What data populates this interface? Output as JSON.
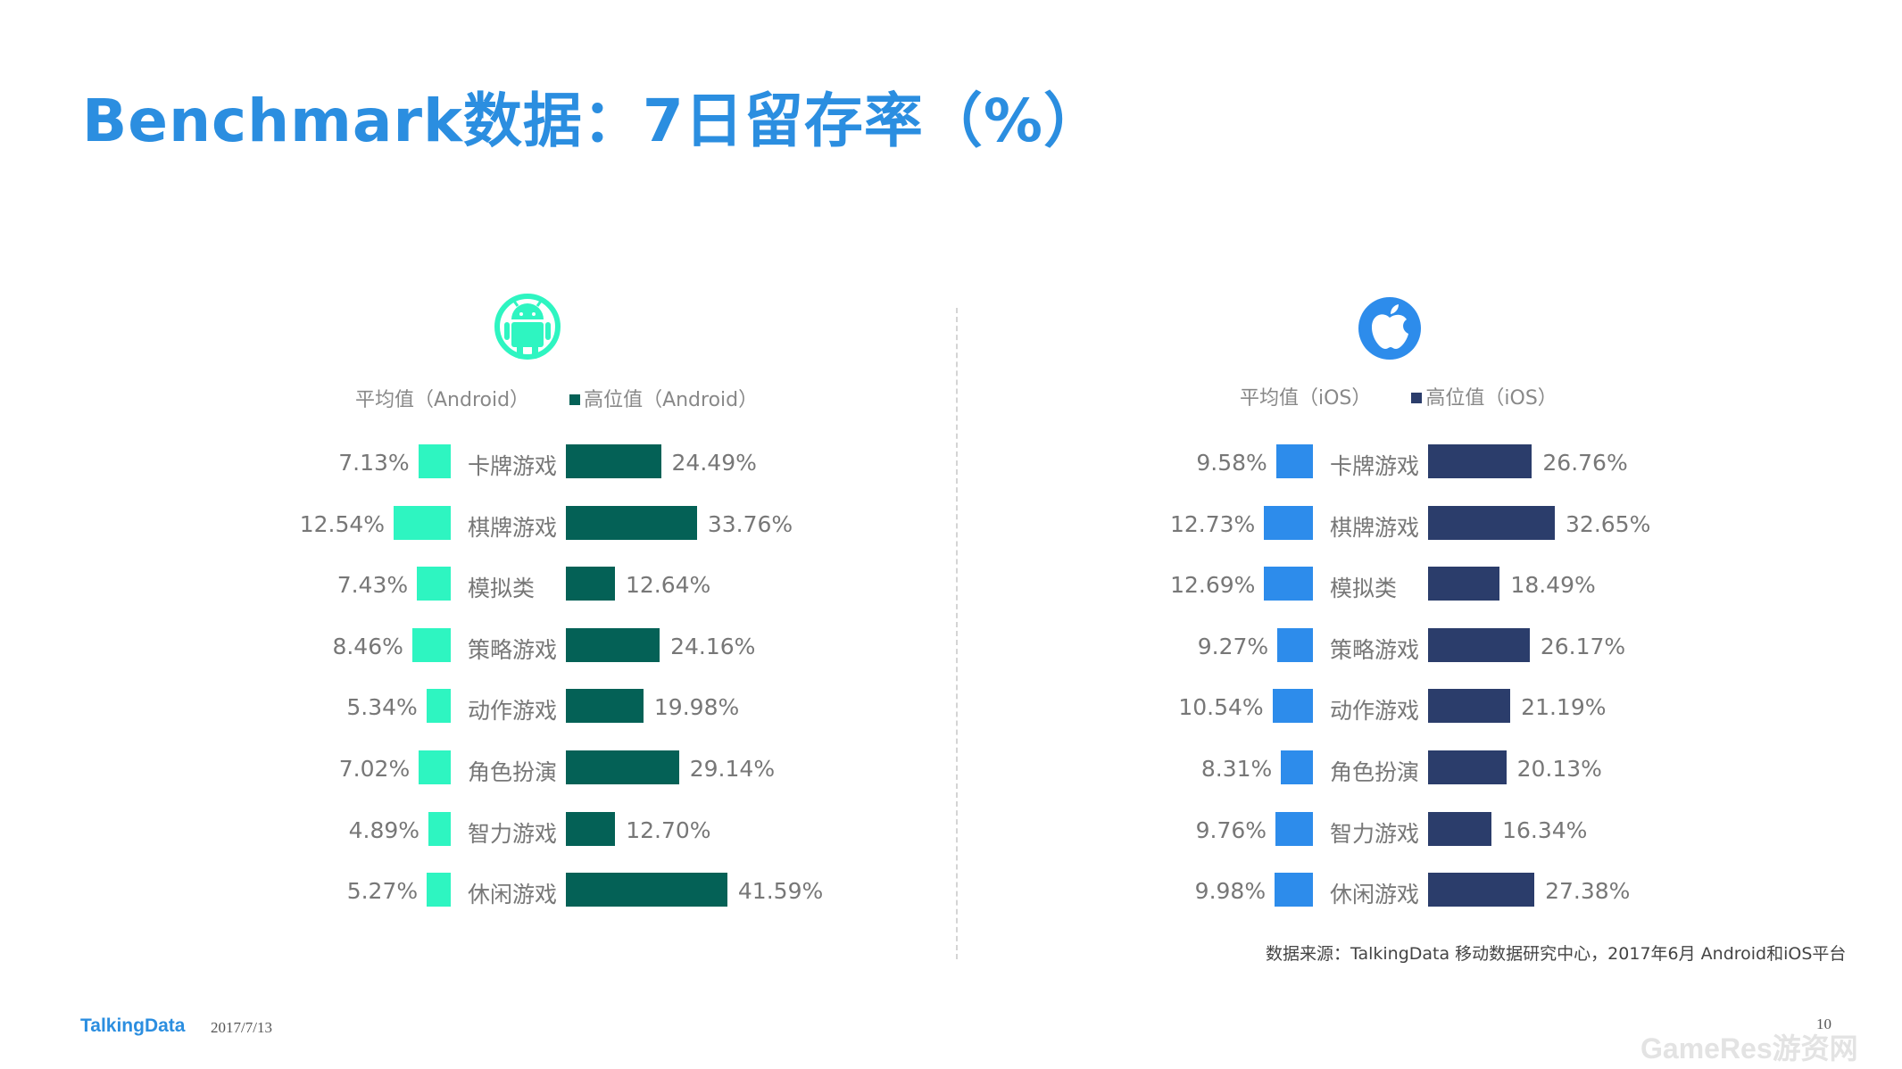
{
  "title": "Benchmark数据：7日留存率（%）",
  "colors": {
    "android_avg": "#2ef5c1",
    "android_high": "#046156",
    "ios_avg": "#2d8ceb",
    "ios_high": "#2b3d6b",
    "title": "#2b8ee0"
  },
  "chart_data": [
    {
      "type": "bar",
      "platform": "Android",
      "icon": "android-icon",
      "categories": [
        "卡牌游戏",
        "棋牌游戏",
        "模拟类",
        "策略游戏",
        "动作游戏",
        "角色扮演",
        "智力游戏",
        "休闲游戏"
      ],
      "series": [
        {
          "name": "平均值（Android）",
          "values": [
            7.13,
            12.54,
            7.43,
            8.46,
            5.34,
            7.02,
            4.89,
            5.27
          ],
          "labels": [
            "7.13%",
            "12.54%",
            "7.43%",
            "8.46%",
            "5.34%",
            "7.02%",
            "4.89%",
            "5.27%"
          ]
        },
        {
          "name": "高位值（Android）",
          "values": [
            24.49,
            33.76,
            12.64,
            24.16,
            19.98,
            29.14,
            12.7,
            41.59
          ],
          "labels": [
            "24.49%",
            "33.76%",
            "12.64%",
            "24.16%",
            "19.98%",
            "29.14%",
            "12.70%",
            "41.59%"
          ]
        }
      ]
    },
    {
      "type": "bar",
      "platform": "iOS",
      "icon": "apple-icon",
      "categories": [
        "卡牌游戏",
        "棋牌游戏",
        "模拟类",
        "策略游戏",
        "动作游戏",
        "角色扮演",
        "智力游戏",
        "休闲游戏"
      ],
      "series": [
        {
          "name": "平均值（iOS）",
          "values": [
            9.58,
            12.73,
            12.69,
            9.27,
            10.54,
            8.31,
            9.76,
            9.98
          ],
          "labels": [
            "9.58%",
            "12.73%",
            "12.69%",
            "9.27%",
            "10.54%",
            "8.31%",
            "9.76%",
            "9.98%"
          ]
        },
        {
          "name": "高位值（iOS）",
          "values": [
            26.76,
            32.65,
            18.49,
            26.17,
            21.19,
            20.13,
            16.34,
            27.38
          ],
          "labels": [
            "26.76%",
            "32.65%",
            "18.49%",
            "26.17%",
            "21.19%",
            "20.13%",
            "16.34%",
            "27.38%"
          ]
        }
      ]
    }
  ],
  "source": "数据来源：TalkingData 移动数据研究中心，2017年6月 Android和iOS平台",
  "footer": {
    "brand": "TalkingData",
    "date": "2017/7/13",
    "page": "10",
    "watermark": "GameRes游资网"
  }
}
